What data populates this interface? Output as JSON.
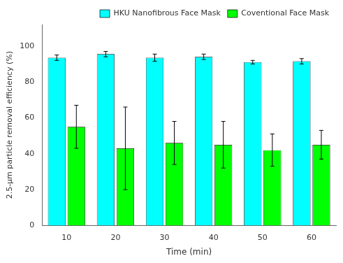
{
  "chart_data": {
    "type": "bar",
    "categories": [
      10,
      20,
      30,
      40,
      50,
      60
    ],
    "xlabel": "Time (min)",
    "ylabel": "2.5-µm particle removal efficiency (%)",
    "series": [
      {
        "name": "HKU Nanofibrous Face Mask",
        "color": "#00FFFF",
        "values": [
          93.5,
          95.5,
          93.5,
          94.0,
          91.0,
          91.5
        ],
        "errors": [
          1.5,
          1.5,
          2.0,
          1.5,
          1.0,
          1.5
        ]
      },
      {
        "name": "Coventional Face Mask",
        "color": "#00FF00",
        "values": [
          55.0,
          43.0,
          46.0,
          45.0,
          42.0,
          45.0
        ],
        "errors_upper": [
          12.0,
          23.0,
          12.0,
          13.0,
          9.0,
          8.0
        ],
        "errors_lower": [
          12.0,
          23.0,
          12.0,
          13.0,
          9.0,
          8.0
        ]
      }
    ],
    "ylim": [
      0,
      112
    ],
    "yticks": [
      0,
      20,
      40,
      60,
      80,
      100
    ],
    "grid": false,
    "legend": "upper right"
  }
}
